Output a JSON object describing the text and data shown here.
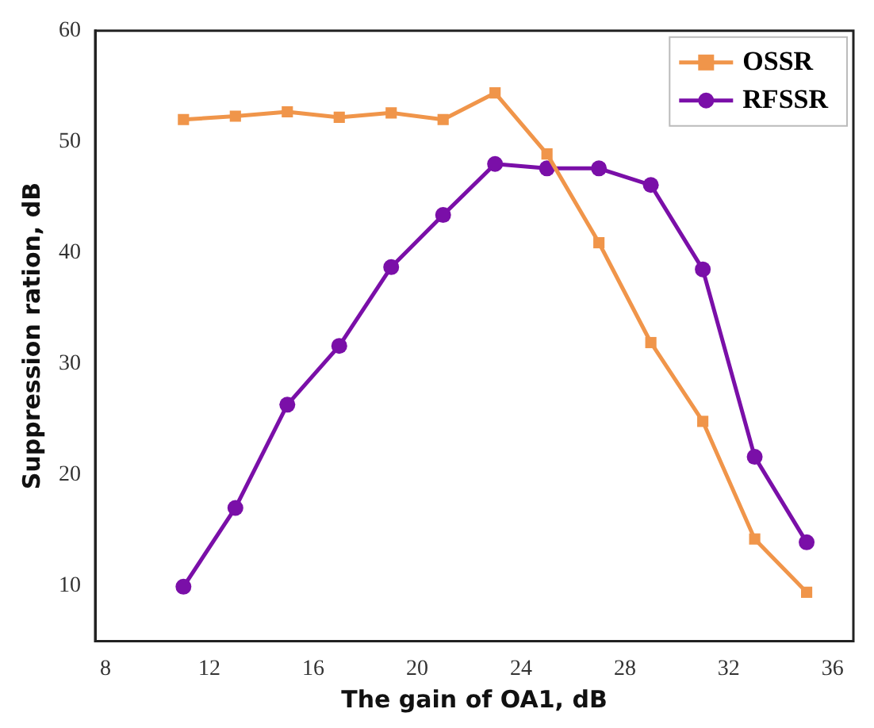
{
  "chart_data": {
    "type": "line",
    "xlabel": "The gain of OA1, dB",
    "ylabel": "Suppression ration, dB",
    "x": [
      11,
      13,
      15,
      17,
      19,
      21,
      23,
      25,
      27,
      29,
      31,
      33,
      35
    ],
    "series": [
      {
        "name": "OSSR",
        "color": "#f0954a",
        "marker": "square",
        "values": [
          52.0,
          52.3,
          52.7,
          52.2,
          52.6,
          52.0,
          54.4,
          48.9,
          40.9,
          31.9,
          24.8,
          14.2,
          9.4
        ]
      },
      {
        "name": "RFSSR",
        "color": "#7a0fa8",
        "marker": "circle",
        "values": [
          9.9,
          17.0,
          26.3,
          31.6,
          38.7,
          43.4,
          48.0,
          47.6,
          47.6,
          46.1,
          38.5,
          21.6,
          13.9
        ]
      }
    ],
    "xlim": [
      7.6,
      36.8
    ],
    "xticks": [
      8,
      12,
      16,
      20,
      24,
      28,
      32,
      36
    ],
    "ylim": [
      5,
      60
    ],
    "yticks": [
      10,
      20,
      30,
      40,
      50,
      60
    ],
    "grid": false,
    "legend": "top right",
    "line_style": "solid"
  }
}
